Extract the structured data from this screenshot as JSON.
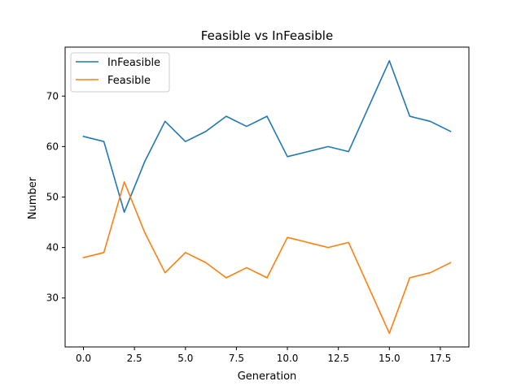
{
  "chart_data": {
    "type": "line",
    "title": "Feasible vs InFeasible",
    "xlabel": "Generation",
    "ylabel": "Number",
    "x": [
      0,
      1,
      2,
      3,
      4,
      5,
      6,
      7,
      8,
      9,
      10,
      11,
      12,
      13,
      14,
      15,
      16,
      17,
      18
    ],
    "xlim": [
      -0.9,
      18.9
    ],
    "ylim": [
      20.3,
      79.7
    ],
    "xticks": [
      0.0,
      2.5,
      5.0,
      7.5,
      10.0,
      12.5,
      15.0,
      17.5
    ],
    "xtick_labels": [
      "0.0",
      "2.5",
      "5.0",
      "7.5",
      "10.0",
      "12.5",
      "15.0",
      "17.5"
    ],
    "yticks": [
      30,
      40,
      50,
      60,
      70
    ],
    "ytick_labels": [
      "30",
      "40",
      "50",
      "60",
      "70"
    ],
    "grid": false,
    "legend_position": "top-left",
    "series": [
      {
        "name": "InFeasible",
        "color": "#1f77b4",
        "values": [
          62,
          61,
          47,
          57,
          65,
          61,
          63,
          66,
          64,
          66,
          58,
          59,
          60,
          59,
          68,
          77,
          66,
          65,
          63
        ]
      },
      {
        "name": "Feasible",
        "color": "#ff7f0e",
        "values": [
          38,
          39,
          53,
          43,
          35,
          39,
          37,
          34,
          36,
          34,
          42,
          41,
          40,
          41,
          32,
          23,
          34,
          35,
          37
        ]
      }
    ]
  }
}
